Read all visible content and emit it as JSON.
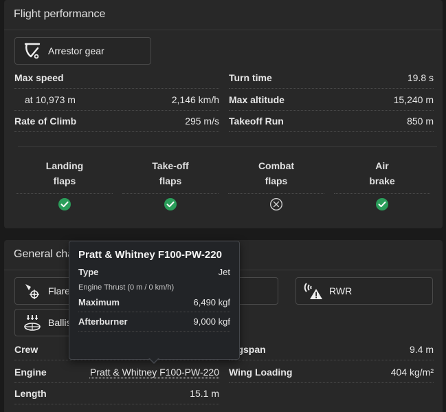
{
  "flight": {
    "title": "Flight performance",
    "chip": {
      "label": "Arrestor gear",
      "icon": "arrestor-hook-icon"
    },
    "left_rows": [
      {
        "label": "Max speed",
        "value": ""
      },
      {
        "label": "at 10,973 m",
        "value": "2,146 km/h"
      },
      {
        "label": "Rate of Climb",
        "value": "295 m/s"
      }
    ],
    "right_rows": [
      {
        "label": "Turn time",
        "value": "19.8 s"
      },
      {
        "label": "Max altitude",
        "value": "15,240 m"
      },
      {
        "label": "Takeoff Run",
        "value": "850 m"
      }
    ],
    "flaps": [
      {
        "line1": "Landing",
        "line2": "flaps",
        "available": true
      },
      {
        "line1": "Take-off",
        "line2": "flaps",
        "available": true
      },
      {
        "line1": "Combat",
        "line2": "flaps",
        "available": false
      },
      {
        "line1": "Air",
        "line2": "brake",
        "available": true
      }
    ],
    "colors": {
      "check": "#2a9d5a",
      "cross": "#cfcfcf"
    }
  },
  "general": {
    "title": "General cha",
    "chips": [
      {
        "label": "Flares",
        "icon": "flares-icon"
      },
      {
        "label": "RWR",
        "icon": "rwr-icon"
      },
      {
        "label": "Ballis",
        "icon": "ballistic-computer-icon"
      }
    ],
    "left_rows": [
      {
        "label": "Crew",
        "value": ""
      },
      {
        "label": "Engine",
        "value": "Pratt & Whitney F100-PW-220"
      },
      {
        "label": "Length",
        "value": "15.1 m"
      }
    ],
    "right_rows": [
      {
        "label": "ingspan",
        "value": "9.4 m"
      },
      {
        "label": "Wing Loading",
        "value": "404 kg/m²"
      }
    ]
  },
  "tooltip": {
    "title": "Pratt & Whitney F100-PW-220",
    "type_label": "Type",
    "type_value": "Jet",
    "section": "Engine Thrust (0 m / 0 km/h)",
    "rows": [
      {
        "label": "Maximum",
        "value": "6,490 kgf"
      },
      {
        "label": "Afterburner",
        "value": "9,000 kgf"
      }
    ]
  }
}
